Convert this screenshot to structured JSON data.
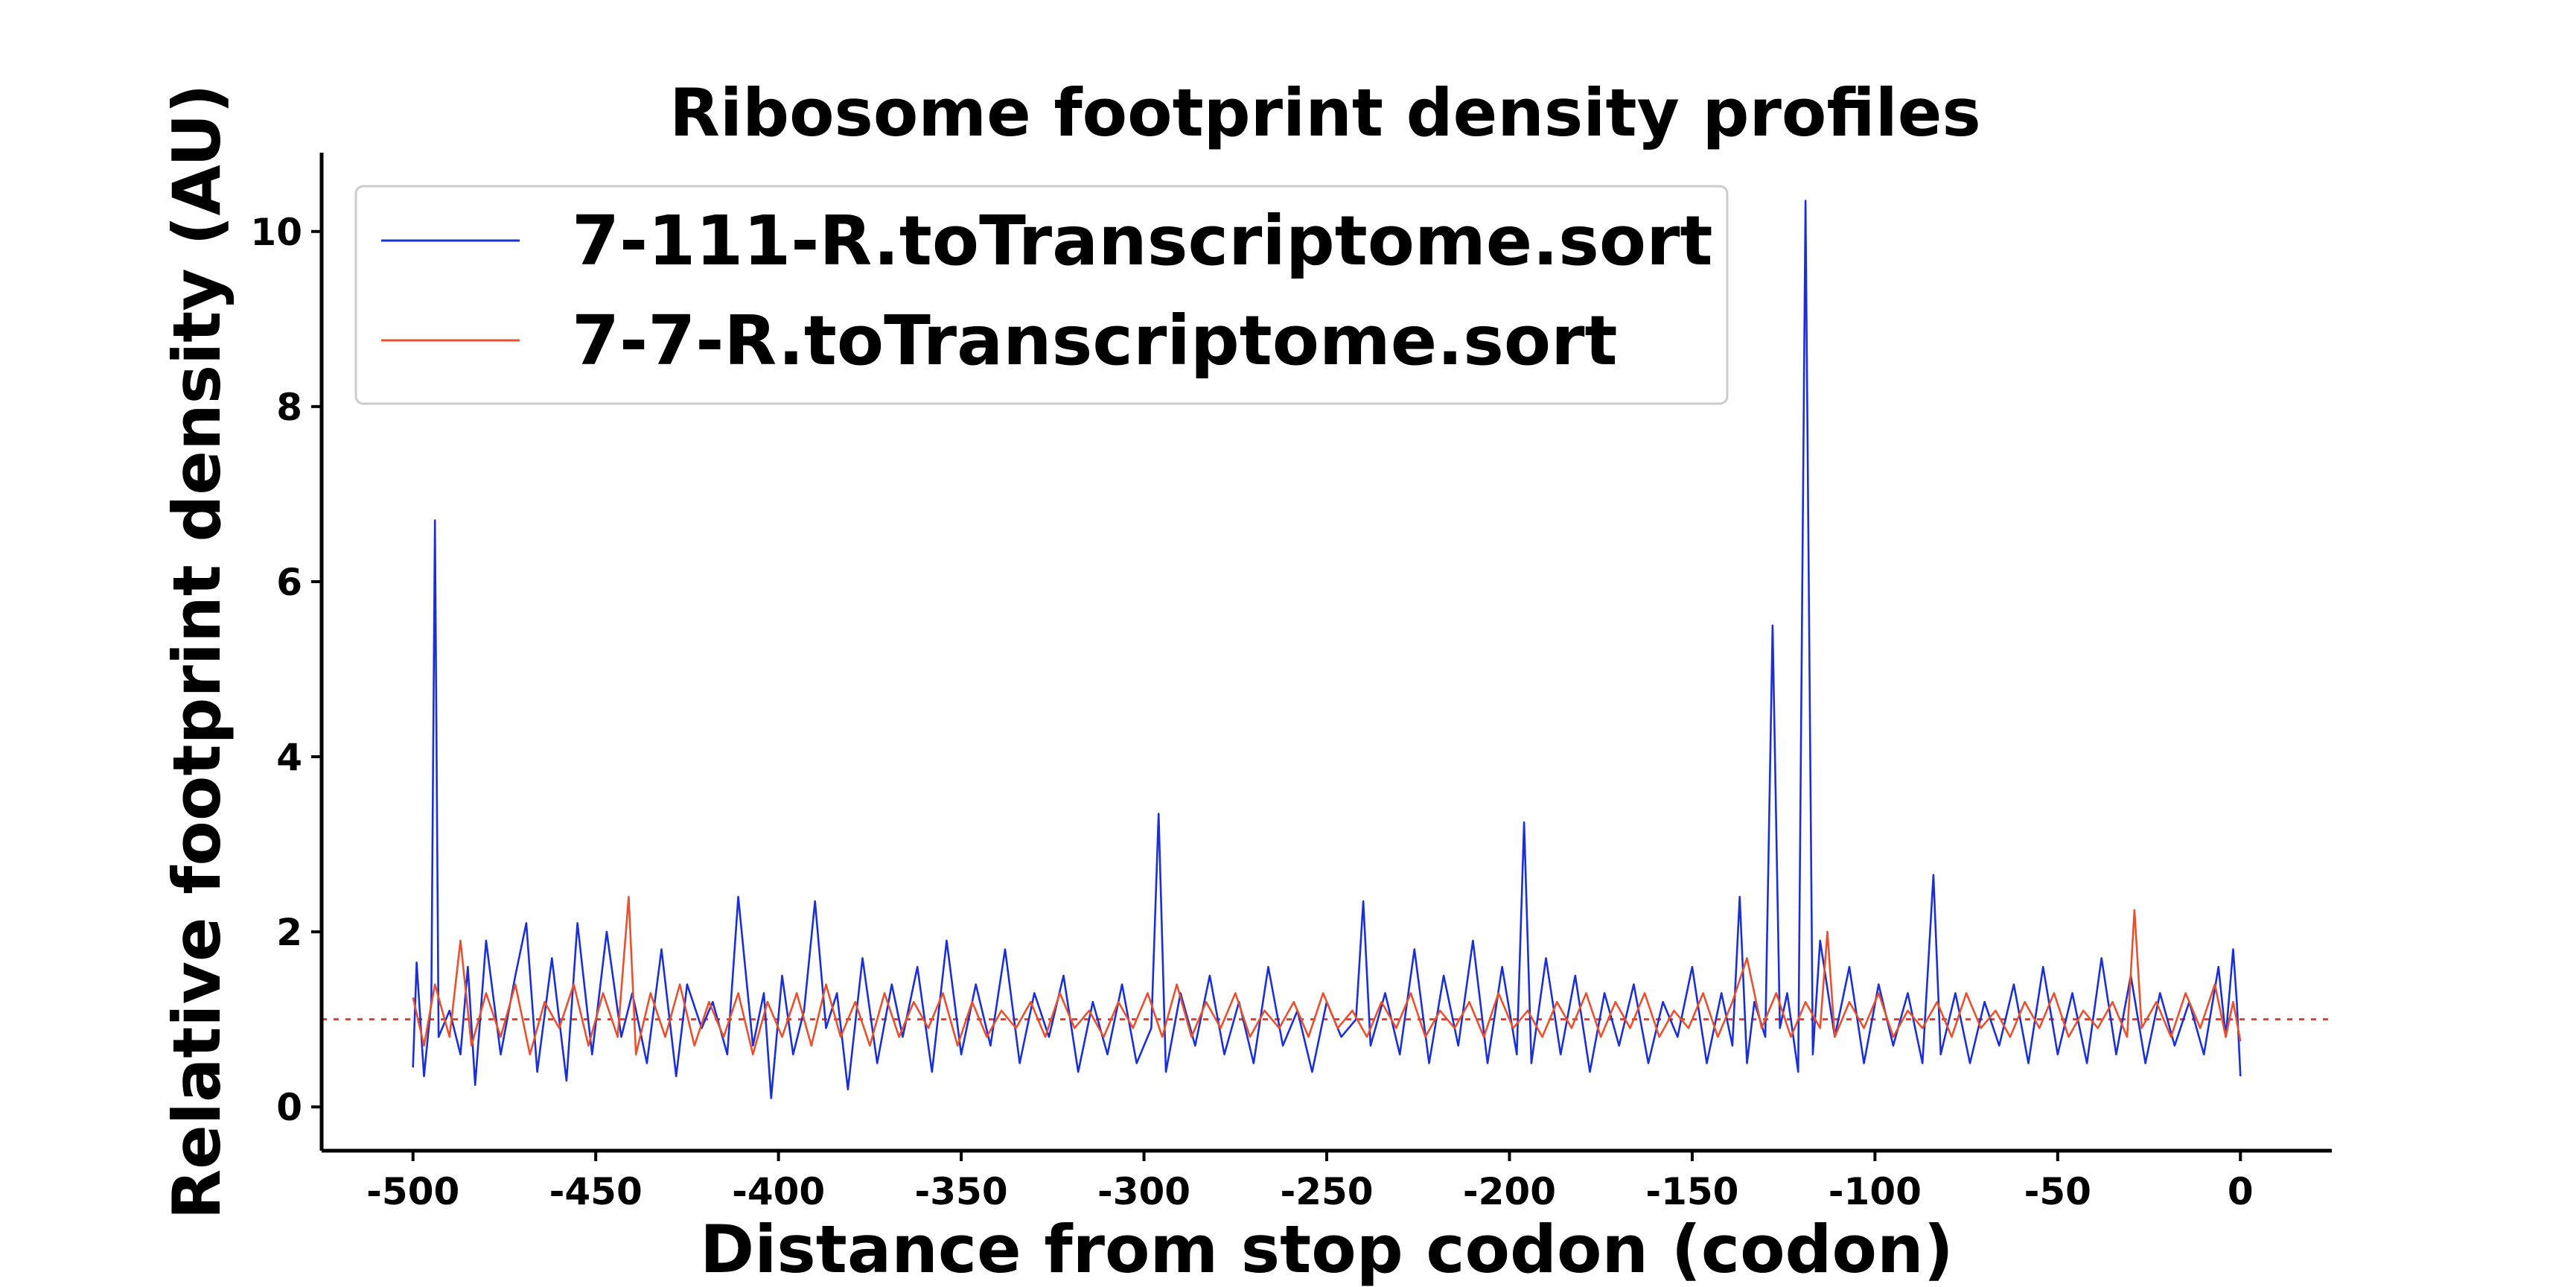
{
  "chart_data": {
    "type": "line",
    "title": "Ribosome footprint density profiles",
    "xlabel": "Distance from stop codon (codon)",
    "ylabel": "Relative footprint density (AU)",
    "xlim": [
      -525,
      25
    ],
    "ylim": [
      -0.5,
      10.9
    ],
    "x_ticks": [
      -500,
      -450,
      -400,
      -350,
      -300,
      -250,
      -200,
      -150,
      -100,
      -50,
      0
    ],
    "x_tick_labels": [
      "-500",
      "-450",
      "-400",
      "-350",
      "-300",
      "-250",
      "-200",
      "-150",
      "-100",
      "-50",
      "0"
    ],
    "y_ticks": [
      0,
      2,
      4,
      6,
      8,
      10
    ],
    "y_tick_labels": [
      "0",
      "2",
      "4",
      "6",
      "8",
      "10"
    ],
    "reference_line": {
      "y": 1,
      "style": "dotted",
      "color": "#e03c31"
    },
    "legend_position": "upper-left",
    "grid": false,
    "series": [
      {
        "name": "7-111-R.toTranscriptome.sort",
        "color": "#1a2fd6",
        "points": [
          [
            -500,
            0.45
          ],
          [
            -499,
            1.65
          ],
          [
            -497,
            0.35
          ],
          [
            -495,
            1.2
          ],
          [
            -494,
            6.7
          ],
          [
            -493,
            0.8
          ],
          [
            -490,
            1.1
          ],
          [
            -487,
            0.6
          ],
          [
            -485,
            1.6
          ],
          [
            -483,
            0.25
          ],
          [
            -480,
            1.9
          ],
          [
            -476,
            0.6
          ],
          [
            -472,
            1.5
          ],
          [
            -469,
            2.1
          ],
          [
            -466,
            0.4
          ],
          [
            -462,
            1.7
          ],
          [
            -458,
            0.3
          ],
          [
            -455,
            2.1
          ],
          [
            -451,
            0.6
          ],
          [
            -447,
            2.0
          ],
          [
            -443,
            0.8
          ],
          [
            -440,
            1.3
          ],
          [
            -436,
            0.5
          ],
          [
            -432,
            1.8
          ],
          [
            -428,
            0.35
          ],
          [
            -425,
            1.4
          ],
          [
            -421,
            0.9
          ],
          [
            -418,
            1.2
          ],
          [
            -414,
            0.6
          ],
          [
            -411,
            2.4
          ],
          [
            -407,
            0.7
          ],
          [
            -404,
            1.3
          ],
          [
            -402,
            0.1
          ],
          [
            -399,
            1.5
          ],
          [
            -396,
            0.6
          ],
          [
            -393,
            1.1
          ],
          [
            -390,
            2.35
          ],
          [
            -387,
            0.9
          ],
          [
            -384,
            1.3
          ],
          [
            -381,
            0.2
          ],
          [
            -377,
            1.7
          ],
          [
            -373,
            0.5
          ],
          [
            -369,
            1.4
          ],
          [
            -366,
            0.8
          ],
          [
            -362,
            1.6
          ],
          [
            -358,
            0.4
          ],
          [
            -354,
            1.9
          ],
          [
            -350,
            0.6
          ],
          [
            -346,
            1.4
          ],
          [
            -342,
            0.7
          ],
          [
            -338,
            1.8
          ],
          [
            -334,
            0.5
          ],
          [
            -330,
            1.3
          ],
          [
            -326,
            0.8
          ],
          [
            -322,
            1.5
          ],
          [
            -318,
            0.4
          ],
          [
            -314,
            1.2
          ],
          [
            -310,
            0.6
          ],
          [
            -306,
            1.4
          ],
          [
            -302,
            0.5
          ],
          [
            -298,
            0.9
          ],
          [
            -296,
            3.35
          ],
          [
            -294,
            0.4
          ],
          [
            -290,
            1.3
          ],
          [
            -286,
            0.7
          ],
          [
            -282,
            1.5
          ],
          [
            -278,
            0.6
          ],
          [
            -274,
            1.2
          ],
          [
            -270,
            0.5
          ],
          [
            -266,
            1.6
          ],
          [
            -262,
            0.7
          ],
          [
            -258,
            1.1
          ],
          [
            -254,
            0.4
          ],
          [
            -250,
            1.2
          ],
          [
            -246,
            0.8
          ],
          [
            -242,
            1.0
          ],
          [
            -240,
            2.35
          ],
          [
            -238,
            0.7
          ],
          [
            -234,
            1.3
          ],
          [
            -230,
            0.6
          ],
          [
            -226,
            1.8
          ],
          [
            -222,
            0.5
          ],
          [
            -218,
            1.5
          ],
          [
            -214,
            0.7
          ],
          [
            -210,
            1.9
          ],
          [
            -206,
            0.5
          ],
          [
            -202,
            1.6
          ],
          [
            -198,
            0.6
          ],
          [
            -196,
            3.25
          ],
          [
            -194,
            0.5
          ],
          [
            -190,
            1.7
          ],
          [
            -186,
            0.6
          ],
          [
            -182,
            1.5
          ],
          [
            -178,
            0.4
          ],
          [
            -174,
            1.3
          ],
          [
            -170,
            0.7
          ],
          [
            -166,
            1.4
          ],
          [
            -162,
            0.5
          ],
          [
            -158,
            1.2
          ],
          [
            -154,
            0.8
          ],
          [
            -150,
            1.6
          ],
          [
            -146,
            0.5
          ],
          [
            -142,
            1.3
          ],
          [
            -139,
            0.7
          ],
          [
            -137,
            2.4
          ],
          [
            -135,
            0.5
          ],
          [
            -133,
            1.2
          ],
          [
            -130,
            0.8
          ],
          [
            -128,
            5.5
          ],
          [
            -126,
            0.9
          ],
          [
            -124,
            1.3
          ],
          [
            -121,
            0.4
          ],
          [
            -119,
            10.35
          ],
          [
            -117,
            0.6
          ],
          [
            -115,
            1.9
          ],
          [
            -111,
            0.8
          ],
          [
            -107,
            1.6
          ],
          [
            -103,
            0.5
          ],
          [
            -99,
            1.4
          ],
          [
            -95,
            0.7
          ],
          [
            -91,
            1.3
          ],
          [
            -87,
            0.5
          ],
          [
            -84,
            2.65
          ],
          [
            -82,
            0.6
          ],
          [
            -78,
            1.3
          ],
          [
            -74,
            0.5
          ],
          [
            -70,
            1.2
          ],
          [
            -66,
            0.7
          ],
          [
            -62,
            1.4
          ],
          [
            -58,
            0.5
          ],
          [
            -54,
            1.6
          ],
          [
            -50,
            0.6
          ],
          [
            -46,
            1.3
          ],
          [
            -42,
            0.5
          ],
          [
            -38,
            1.7
          ],
          [
            -34,
            0.6
          ],
          [
            -30,
            1.5
          ],
          [
            -26,
            0.5
          ],
          [
            -22,
            1.3
          ],
          [
            -18,
            0.7
          ],
          [
            -14,
            1.2
          ],
          [
            -10,
            0.6
          ],
          [
            -6,
            1.6
          ],
          [
            -4,
            0.8
          ],
          [
            -2,
            1.8
          ],
          [
            -1,
            1.2
          ],
          [
            0,
            0.35
          ]
        ]
      },
      {
        "name": "7-7-R.toTranscriptome.sort",
        "color": "#e8502e",
        "points": [
          [
            -500,
            1.25
          ],
          [
            -497,
            0.7
          ],
          [
            -494,
            1.4
          ],
          [
            -490,
            0.8
          ],
          [
            -487,
            1.9
          ],
          [
            -484,
            0.7
          ],
          [
            -480,
            1.3
          ],
          [
            -476,
            0.8
          ],
          [
            -472,
            1.4
          ],
          [
            -468,
            0.6
          ],
          [
            -464,
            1.2
          ],
          [
            -460,
            0.9
          ],
          [
            -456,
            1.4
          ],
          [
            -452,
            0.7
          ],
          [
            -448,
            1.3
          ],
          [
            -444,
            0.8
          ],
          [
            -441,
            2.4
          ],
          [
            -439,
            0.6
          ],
          [
            -435,
            1.3
          ],
          [
            -431,
            0.8
          ],
          [
            -427,
            1.4
          ],
          [
            -423,
            0.7
          ],
          [
            -419,
            1.2
          ],
          [
            -415,
            0.8
          ],
          [
            -411,
            1.3
          ],
          [
            -407,
            0.6
          ],
          [
            -403,
            1.2
          ],
          [
            -399,
            0.8
          ],
          [
            -395,
            1.3
          ],
          [
            -391,
            0.7
          ],
          [
            -387,
            1.4
          ],
          [
            -383,
            0.8
          ],
          [
            -379,
            1.2
          ],
          [
            -375,
            0.7
          ],
          [
            -371,
            1.3
          ],
          [
            -367,
            0.8
          ],
          [
            -363,
            1.2
          ],
          [
            -359,
            0.9
          ],
          [
            -355,
            1.3
          ],
          [
            -351,
            0.7
          ],
          [
            -347,
            1.2
          ],
          [
            -343,
            0.8
          ],
          [
            -339,
            1.1
          ],
          [
            -335,
            0.9
          ],
          [
            -331,
            1.2
          ],
          [
            -327,
            0.8
          ],
          [
            -323,
            1.3
          ],
          [
            -319,
            0.9
          ],
          [
            -315,
            1.1
          ],
          [
            -311,
            0.8
          ],
          [
            -307,
            1.2
          ],
          [
            -303,
            0.9
          ],
          [
            -299,
            1.3
          ],
          [
            -295,
            0.8
          ],
          [
            -291,
            1.4
          ],
          [
            -287,
            0.8
          ],
          [
            -283,
            1.2
          ],
          [
            -279,
            0.9
          ],
          [
            -275,
            1.3
          ],
          [
            -271,
            0.8
          ],
          [
            -267,
            1.1
          ],
          [
            -263,
            0.9
          ],
          [
            -259,
            1.2
          ],
          [
            -255,
            0.8
          ],
          [
            -251,
            1.3
          ],
          [
            -247,
            0.9
          ],
          [
            -243,
            1.1
          ],
          [
            -239,
            0.8
          ],
          [
            -235,
            1.2
          ],
          [
            -231,
            0.9
          ],
          [
            -227,
            1.3
          ],
          [
            -223,
            0.8
          ],
          [
            -219,
            1.1
          ],
          [
            -215,
            0.9
          ],
          [
            -211,
            1.2
          ],
          [
            -207,
            0.8
          ],
          [
            -203,
            1.3
          ],
          [
            -199,
            0.9
          ],
          [
            -195,
            1.1
          ],
          [
            -191,
            0.8
          ],
          [
            -187,
            1.2
          ],
          [
            -183,
            0.9
          ],
          [
            -179,
            1.3
          ],
          [
            -175,
            0.8
          ],
          [
            -171,
            1.2
          ],
          [
            -167,
            0.9
          ],
          [
            -163,
            1.3
          ],
          [
            -159,
            0.8
          ],
          [
            -155,
            1.1
          ],
          [
            -151,
            0.9
          ],
          [
            -147,
            1.3
          ],
          [
            -143,
            0.8
          ],
          [
            -139,
            1.2
          ],
          [
            -135,
            1.7
          ],
          [
            -131,
            0.9
          ],
          [
            -127,
            1.3
          ],
          [
            -123,
            0.8
          ],
          [
            -119,
            1.2
          ],
          [
            -115,
            0.9
          ],
          [
            -113,
            2.0
          ],
          [
            -111,
            0.8
          ],
          [
            -107,
            1.2
          ],
          [
            -103,
            0.9
          ],
          [
            -99,
            1.3
          ],
          [
            -95,
            0.8
          ],
          [
            -91,
            1.1
          ],
          [
            -87,
            0.9
          ],
          [
            -83,
            1.2
          ],
          [
            -79,
            0.8
          ],
          [
            -75,
            1.3
          ],
          [
            -71,
            0.9
          ],
          [
            -67,
            1.1
          ],
          [
            -63,
            0.8
          ],
          [
            -59,
            1.2
          ],
          [
            -55,
            0.9
          ],
          [
            -51,
            1.3
          ],
          [
            -47,
            0.8
          ],
          [
            -43,
            1.1
          ],
          [
            -39,
            0.9
          ],
          [
            -35,
            1.2
          ],
          [
            -31,
            0.8
          ],
          [
            -29,
            2.25
          ],
          [
            -27,
            0.9
          ],
          [
            -23,
            1.2
          ],
          [
            -19,
            0.8
          ],
          [
            -15,
            1.3
          ],
          [
            -11,
            0.9
          ],
          [
            -7,
            1.4
          ],
          [
            -4,
            0.8
          ],
          [
            -2,
            1.2
          ],
          [
            0,
            0.75
          ]
        ]
      }
    ]
  }
}
